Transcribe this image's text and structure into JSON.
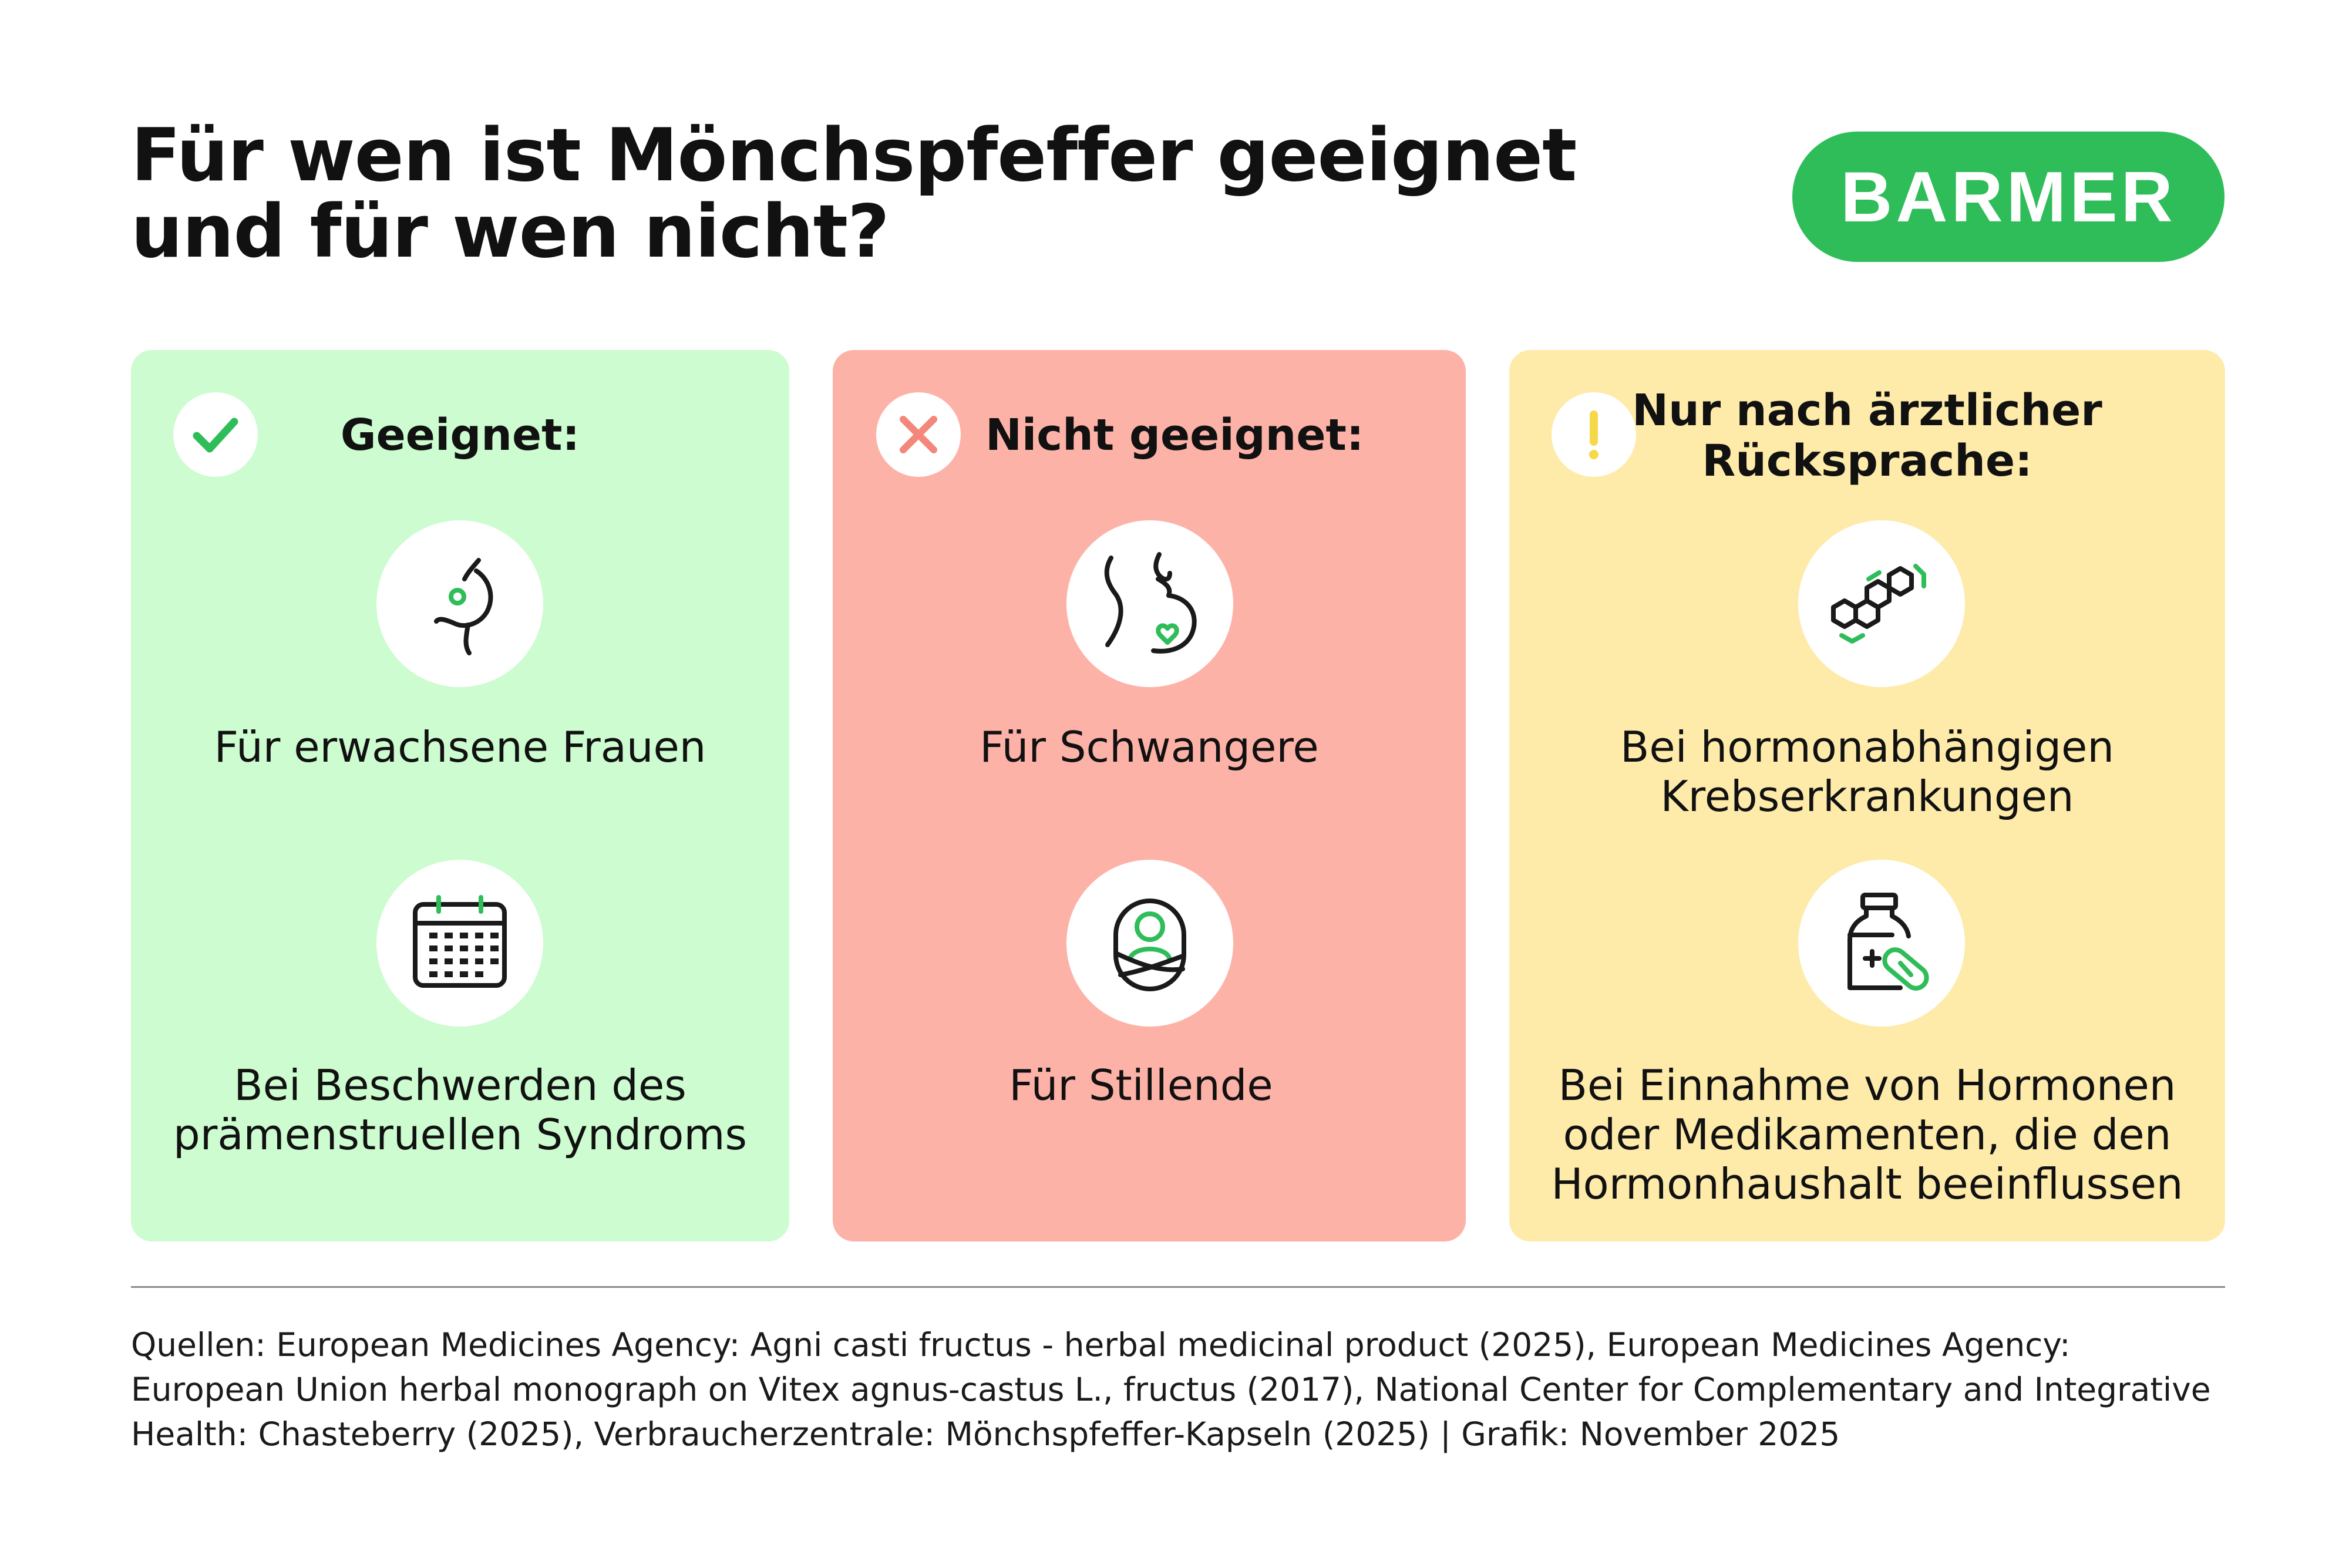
{
  "title": {
    "line1": "Für wen ist Mönchspfeffer geeignet",
    "line2": "und für wen nicht?"
  },
  "logo": {
    "text": "BARMER"
  },
  "colors": {
    "brand_green": "#2ebd59",
    "card_green": "#ccfccf",
    "card_red": "#fdb2a8",
    "card_yellow": "#feebaa",
    "x_mark": "#f4877c",
    "exclamation": "#f5d94a"
  },
  "columns": [
    {
      "title": "Geeignet:",
      "status_icon": "checkmark-icon",
      "items": [
        {
          "icon": "female-body-icon",
          "lines": [
            "Für erwachsene Frauen"
          ]
        },
        {
          "icon": "calendar-icon",
          "lines": [
            "Bei Beschwerden des",
            "prämenstruellen Syndroms"
          ]
        }
      ]
    },
    {
      "title": "Nicht geeignet:",
      "status_icon": "x-mark-icon",
      "items": [
        {
          "icon": "pregnancy-icon",
          "lines": [
            "Für Schwangere"
          ]
        },
        {
          "icon": "swaddled-baby-icon",
          "lines": [
            "Für Stillende"
          ]
        }
      ]
    },
    {
      "title_lines": [
        "Nur nach ärztlicher",
        "Rücksprache:"
      ],
      "status_icon": "exclamation-icon",
      "items": [
        {
          "icon": "molecule-icon",
          "lines": [
            "Bei hormonabhängigen",
            "Krebserkrankungen"
          ]
        },
        {
          "icon": "medicine-bottle-icon",
          "lines": [
            "Bei Einnahme von Hormonen",
            "oder Medikamenten, die den",
            "Hormonhaushalt beeinflussen"
          ]
        }
      ]
    }
  ],
  "sources": {
    "lines": [
      "Quellen: European Medicines Agency: Agni casti fructus - herbal medicinal product (2025), European Medicines Agency:",
      "European Union herbal monograph on Vitex agnus-castus L., fructus (2017), National Center for Complementary and Integrative",
      "Health: Chasteberry (2025), Verbraucherzentrale: Mönchspfeffer-Kapseln (2025) | Grafik: November 2025"
    ]
  }
}
